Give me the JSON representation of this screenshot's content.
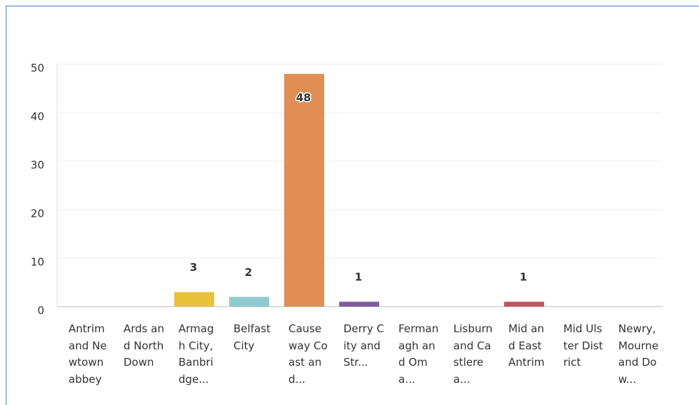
{
  "chart_data": {
    "type": "bar",
    "categories": [
      "Antrim and Newtownabbey",
      "Ards and North Down",
      "Armagh City, Banbridge...",
      "Belfast City",
      "Causeway Coast and...",
      "Derry City and Str...",
      "Fermanagh and Oma...",
      "Lisburn and Castlerea...",
      "Mid and East Antrim",
      "Mid Ulster District",
      "Newry, Mourne and Dow..."
    ],
    "values": [
      0,
      0,
      3,
      2,
      48,
      1,
      0,
      0,
      1,
      0,
      0
    ],
    "colors": [
      "#6aa5d9",
      "#9bbf5a",
      "#e8c33a",
      "#8fcbd0",
      "#e08e53",
      "#7b5c9c",
      "#5bb08a",
      "#d98ab0",
      "#c9505d",
      "#8a8a8a",
      "#4f81bd"
    ],
    "ylim": [
      0,
      50
    ],
    "yticks": [
      0,
      10,
      20,
      30,
      40,
      50
    ],
    "grid": true
  }
}
